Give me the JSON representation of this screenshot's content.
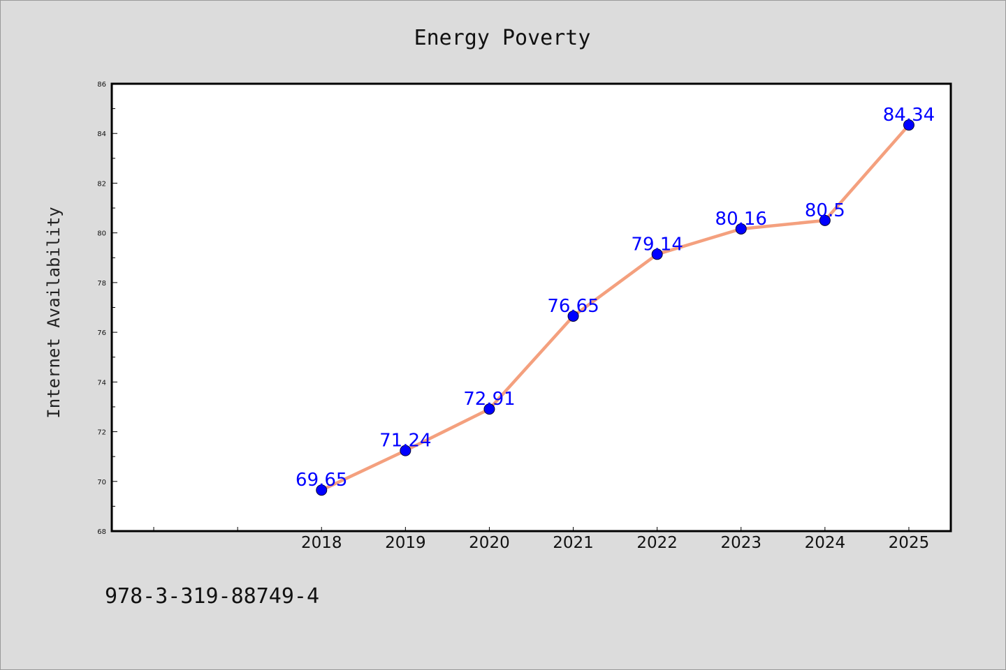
{
  "chart_data": {
    "type": "line",
    "title": "Energy Poverty",
    "xlabel": "",
    "ylabel": "Internet Availability",
    "categories": [
      "2018",
      "2019",
      "2020",
      "2021",
      "2022",
      "2023",
      "2024",
      "2025"
    ],
    "series": [
      {
        "values": [
          69.65,
          71.24,
          72.91,
          76.65,
          79.14,
          80.16,
          80.5,
          84.34
        ],
        "color": "#f4a07e",
        "marker_color": "#0000ff"
      }
    ],
    "data_labels": [
      "69.65",
      "71.24",
      "72.91",
      "76.65",
      "79.14",
      "80.16",
      "80.5",
      "84.34"
    ],
    "data_label_color": "#0000ff",
    "ylim": [
      68,
      86
    ],
    "yticks": [
      "68",
      "70",
      "72",
      "74",
      "76",
      "78",
      "80",
      "82",
      "84",
      "86"
    ],
    "xlim": [
      2015.5,
      2025.5
    ],
    "grid": false,
    "legend": "none"
  },
  "footnote": "978-3-319-88749-4"
}
